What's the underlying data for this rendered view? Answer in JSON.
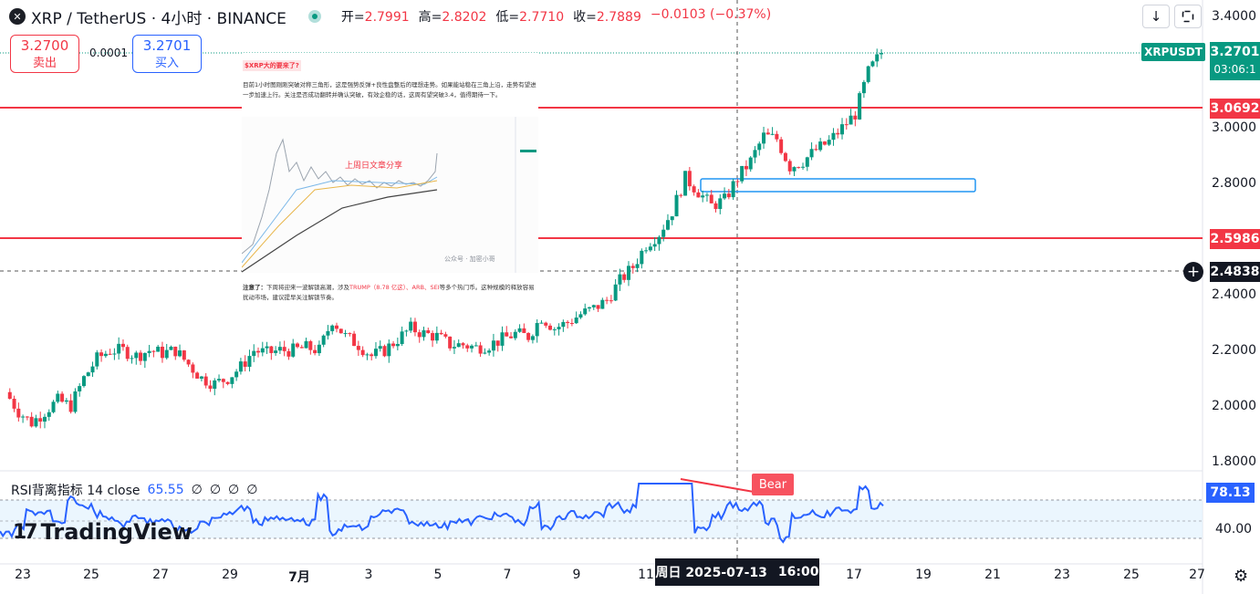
{
  "header": {
    "symbol_icon": "x-logo-icon",
    "title": "XRP / TetherUS · 4小时 · BINANCE",
    "open_label": "开=",
    "open": "2.7991",
    "high_label": "高=",
    "high": "2.8202",
    "low_label": "低=",
    "low": "2.7710",
    "close_label": "收=",
    "close": "2.7889",
    "change": "−0.0103 (−0.37%)"
  },
  "trade": {
    "sell_price": "3.2700",
    "sell_label": "卖出",
    "spread": "0.0001",
    "buy_price": "3.2701",
    "buy_label": "买入"
  },
  "toolbar": {
    "download_icon": "arrow-down-icon",
    "fullscreen_icon": "fullscreen-icon"
  },
  "price_axis": {
    "ticks": [
      "3.4000",
      "3.0000",
      "2.8000",
      "2.4000",
      "2.2000",
      "2.0000",
      "1.8000"
    ],
    "symbol_label": "XRPUSDT",
    "live_price": "3.2701",
    "countdown": "03:06:1",
    "line_upper": "3.0692",
    "line_lower": "2.5986",
    "crosshair_price": "2.4838"
  },
  "article": {
    "title": "$XRP大的要来了?",
    "body": "目前1小时图刚刚突破对称三角形，这是强势反弹+良性盘整后的理想走势。如果能站稳在三角上沿，走势有望进一步加速上行。关注是否成功翻转并确认突破，有效企稳的话，这周有望突破3.4，值得期待一下。",
    "thumb_label": "上周日文章分享",
    "thumb_watermark": "公众号 · 加密小哥",
    "note_bold": "注意了：",
    "note_pre": "下周将迎来一波解锁高潮，涉及",
    "note_hl": "TRUMP（8.78 亿这）、ARB、SEI",
    "note_post": "等多个热门币。这种规模的释放容易扰动市场，建议提早关注解锁节奏。"
  },
  "rsi": {
    "label": "RSI背离指标 14 close",
    "value": "65.55",
    "disabled_glyphs": [
      "∅",
      "∅",
      "∅",
      "∅"
    ],
    "current": "78.13",
    "tick": "40.00",
    "bear_label": "Bear"
  },
  "logo": {
    "mark": "17",
    "text": "TradingView"
  },
  "time_axis": {
    "ticks": [
      "23",
      "25",
      "27",
      "29",
      "7月",
      "3",
      "5",
      "7",
      "9",
      "11",
      "17",
      "19",
      "21",
      "23",
      "25",
      "27"
    ],
    "crosshair_date": "周日 2025-07-13",
    "crosshair_time": "16:00"
  },
  "colors": {
    "up": "#089981",
    "down": "#f23645",
    "rsi": "#2962ff",
    "accent_line": "#f23645"
  },
  "chart_data": {
    "type": "candlestick",
    "ylim": [
      1.75,
      3.45
    ],
    "close_path": [
      2.05,
      1.98,
      1.94,
      1.98,
      2.02,
      2.0,
      2.1,
      2.17,
      2.2,
      2.2,
      2.18,
      2.2,
      2.19,
      2.2,
      2.15,
      2.1,
      2.08,
      2.1,
      2.14,
      2.2,
      2.19,
      2.2,
      2.2,
      2.21,
      2.2,
      2.31,
      2.25,
      2.22,
      2.18,
      2.2,
      2.24,
      2.28,
      2.26,
      2.25,
      2.22,
      2.22,
      2.21,
      2.22,
      2.24,
      2.26,
      2.25,
      2.32,
      2.28,
      2.3,
      2.33,
      2.35,
      2.38,
      2.45,
      2.5,
      2.58,
      2.62,
      2.7,
      2.82,
      2.77,
      2.72,
      2.74,
      2.82,
      2.88,
      2.97,
      2.96,
      2.86,
      2.88,
      2.92,
      2.95,
      3.0,
      3.05,
      3.2,
      3.27
    ]
  }
}
